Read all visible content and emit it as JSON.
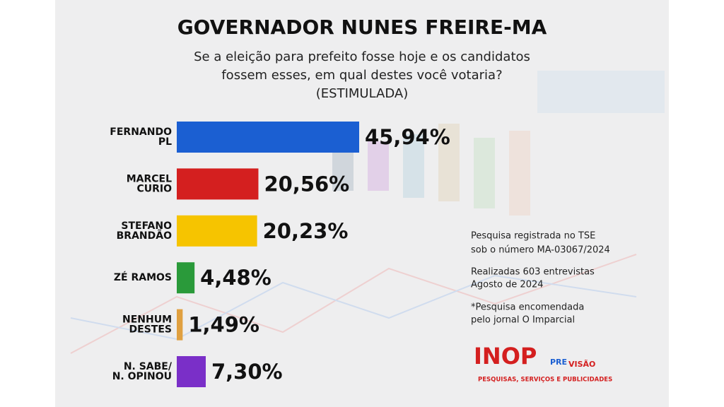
{
  "chart_data": {
    "type": "bar",
    "orientation": "horizontal",
    "title": "GOVERNADOR NUNES FREIRE-MA",
    "subtitle": [
      "Se a eleição para prefeito fosse hoje e os candidatos",
      "fossem esses, em qual destes você votaria?",
      "(ESTIMULADA)"
    ],
    "categories": [
      "FERNANDO\nPL",
      "MARCEL\nCURIO",
      "STEFANO\nBRANDÃO",
      "ZÉ RAMOS",
      "NENHUM\nDESTES",
      "N. SABE/\nN. OPINOU"
    ],
    "values": [
      45.94,
      20.56,
      20.23,
      4.48,
      1.49,
      7.3
    ],
    "value_labels": [
      "45,94%",
      "20,56%",
      "20,23%",
      "4,48%",
      "1,49%",
      "7,30%"
    ],
    "colors": [
      "#1b5fd2",
      "#d41f1f",
      "#f6c400",
      "#2a9a3a",
      "#e0a040",
      "#7a2fc8"
    ],
    "notes": [
      "Pesquisa registrada no TSE",
      "sob o número MA-03067/2024",
      "Realizadas 603 entrevistas",
      "Agosto de 2024",
      "*Pesquisa encomendada",
      "pelo jornal O Imparcial"
    ],
    "logo": {
      "name": "INOP",
      "suffix_1": "PRE",
      "suffix_2": "VISÃO",
      "tagline": "PESQUISAS, SERVIÇOS E PUBLICIDADES"
    }
  }
}
